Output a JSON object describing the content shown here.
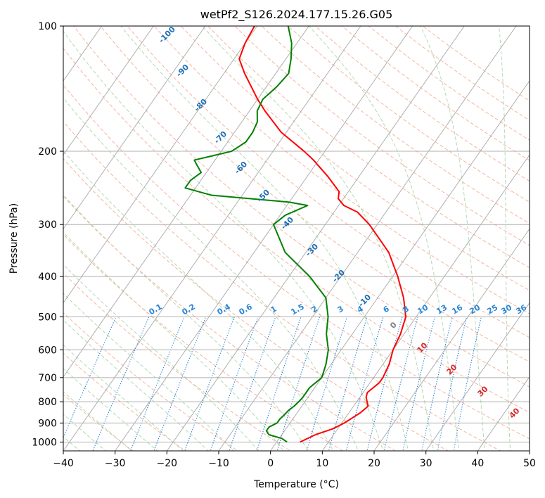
{
  "chart_data": {
    "type": "line",
    "title": "wetPf2_S126.2024.177.15.26.G05",
    "xlabel": "Temperature (°C)",
    "ylabel": "Pressure (hPa)",
    "xlim": [
      -40,
      50
    ],
    "ylim": [
      1050,
      100
    ],
    "y_scale": "log",
    "grid": true,
    "x_ticks": [
      "−40",
      "−30",
      "−20",
      "−10",
      "0",
      "10",
      "20",
      "30",
      "40",
      "50"
    ],
    "y_ticks": [
      {
        "p": 100,
        "label": "100"
      },
      {
        "p": 200,
        "label": "200"
      },
      {
        "p": 300,
        "label": "300"
      },
      {
        "p": 400,
        "label": "400"
      },
      {
        "p": 500,
        "label": "500"
      },
      {
        "p": 600,
        "label": "600"
      },
      {
        "p": 700,
        "label": "700"
      },
      {
        "p": 800,
        "label": "800"
      },
      {
        "p": 900,
        "label": "900"
      },
      {
        "p": 1000,
        "label": "1000"
      }
    ],
    "series": [
      {
        "color": "#ff0000",
        "p": [
          1000,
          960,
          930,
          900,
          870,
          850,
          820,
          800,
          780,
          760,
          740,
          720,
          700,
          650,
          600,
          550,
          500,
          450,
          400,
          350,
          300,
          280,
          270,
          260,
          250,
          230,
          210,
          200,
          180,
          160,
          150,
          130,
          120,
          110,
          100
        ],
        "temp": [
          4.5,
          6.5,
          9.0,
          10.5,
          11.5,
          12.2,
          12.8,
          12.0,
          11.2,
          10.8,
          11.3,
          11.8,
          11.8,
          11.2,
          10.0,
          9.3,
          8.0,
          5.0,
          1.0,
          -4.0,
          -11.5,
          -15.5,
          -19.0,
          -21.0,
          -21.8,
          -26.0,
          -31.0,
          -34.0,
          -41.0,
          -47.0,
          -50.0,
          -56.0,
          -59.0,
          -60.0,
          -60.5
        ]
      },
      {
        "color": "#008000",
        "p": [
          1000,
          980,
          960,
          940,
          920,
          900,
          880,
          860,
          840,
          820,
          800,
          780,
          760,
          740,
          720,
          700,
          650,
          600,
          550,
          500,
          450,
          400,
          350,
          300,
          285,
          270,
          265,
          255,
          245,
          235,
          225,
          215,
          210,
          205,
          200,
          190,
          180,
          170,
          160,
          150,
          140,
          130,
          120,
          110,
          100
        ],
        "dewp": [
          2.0,
          0.5,
          -2.5,
          -3.5,
          -3.5,
          -2.5,
          -2.5,
          -2.2,
          -2.0,
          -1.5,
          -1.2,
          -1.0,
          -1.0,
          -1.0,
          -0.5,
          0.0,
          -1.0,
          -2.5,
          -5.0,
          -7.0,
          -10.0,
          -16.0,
          -24.0,
          -30.0,
          -29.0,
          -26.0,
          -30.0,
          -46.0,
          -52.0,
          -52.0,
          -51.0,
          -53.0,
          -54.0,
          -51.0,
          -48.0,
          -46.5,
          -46.5,
          -47.0,
          -48.5,
          -49.0,
          -48.0,
          -47.5,
          -49.0,
          -51.0,
          -54.0
        ]
      }
    ],
    "dry_adiabat_labels": [
      "-100",
      "-90",
      "-80",
      "-70",
      "-60",
      "-50",
      "-40",
      "-30",
      "-20",
      "-10",
      "0",
      "10",
      "20",
      "30",
      "40"
    ],
    "mixing_ratio_labels": [
      "0.1",
      "0.2",
      "0.4",
      "0.6",
      "1",
      "1.5",
      "2",
      "3",
      "4",
      "6",
      "8",
      "10",
      "13",
      "16",
      "20",
      "25",
      "30",
      "36"
    ]
  }
}
